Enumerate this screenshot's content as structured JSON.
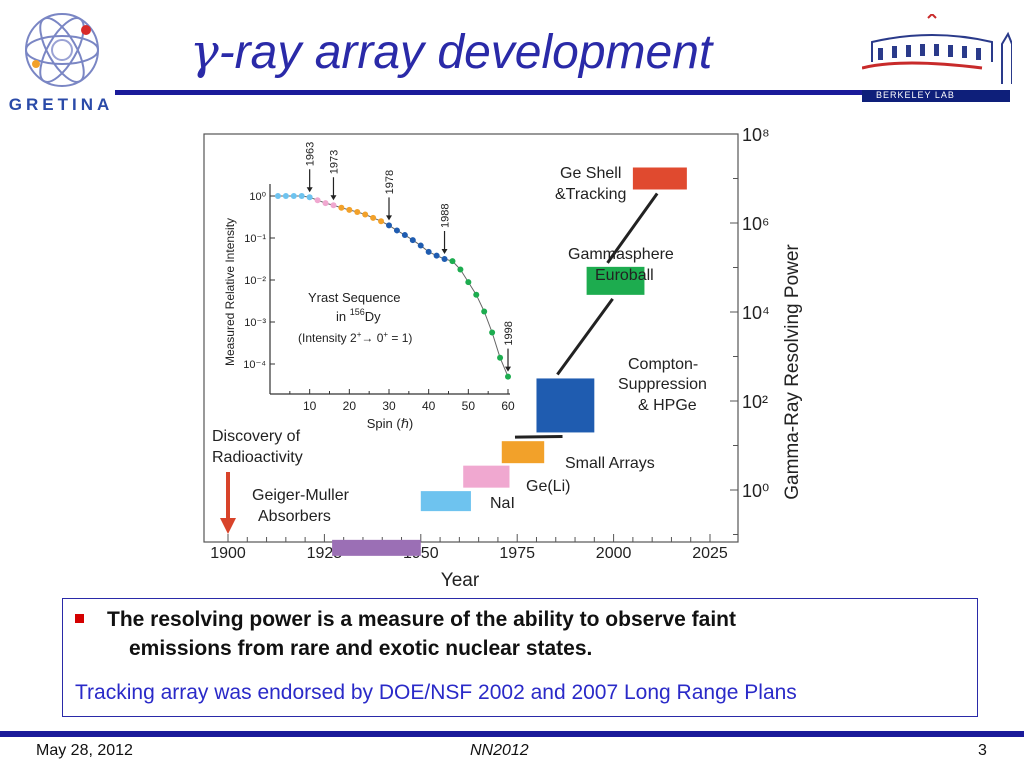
{
  "slide": {
    "title_gamma": "γ",
    "title_rest": "-ray array development"
  },
  "logos": {
    "gretina_text": "GRETINA",
    "berkeley_text": "BERKELEY LAB"
  },
  "chart_data": [
    {
      "type": "bar",
      "xlabel": "Year",
      "ylabel": "Gamma-Ray Resolving Power",
      "x_ticks": [
        "1900",
        "1925",
        "1950",
        "1975",
        "2000",
        "2025"
      ],
      "y_ticks": [
        "10⁰",
        "10²",
        "10⁴",
        "10⁶",
        "10⁸"
      ],
      "xlim": [
        1895,
        2025
      ],
      "ylim": [
        -1.5,
        8.5
      ],
      "yscale": "log",
      "annotations": {
        "discovery": "Discovery of Radioactivity",
        "discovery_year": 1896
      },
      "series": [
        {
          "name": "Geiger-Muller Absorbers",
          "start": 1927,
          "end": 1950,
          "value": -1.3,
          "color": "#9b6fb5"
        },
        {
          "name": "NaI",
          "start": 1950,
          "end": 1963,
          "value": -0.25,
          "color": "#6ec3ef"
        },
        {
          "name": "Ge(Li)",
          "start": 1961,
          "end": 1973,
          "value": 0.3,
          "color": "#f0a8d0"
        },
        {
          "name": "Small Arrays",
          "start": 1971,
          "end": 1982,
          "value": 0.85,
          "color": "#f2a12a"
        },
        {
          "name": "Compton-Suppression & HPGe",
          "start": 1980,
          "end": 1995,
          "value": 1.9,
          "color": "#1f5cb0"
        },
        {
          "name": "Gammasphere Euroball",
          "start": 1993,
          "end": 2008,
          "value": 4.7,
          "color": "#1dac4f"
        },
        {
          "name": "Ge Shell &Tracking",
          "start": 2005,
          "end": 2019,
          "value": 7.0,
          "color": "#e04a2f"
        }
      ]
    },
    {
      "type": "scatter",
      "title": "Yrast Sequence in ¹⁵⁶Dy",
      "note": "(Intensity 2⁺→ 0⁺ = 1)",
      "xlabel": "Spin (ℏ)",
      "ylabel": "Measured Relative Intensity",
      "x_ticks": [
        "10",
        "20",
        "30",
        "40",
        "50",
        "60"
      ],
      "y_ticks": [
        "10⁰",
        "10⁻¹",
        "10⁻²",
        "10⁻³",
        "10⁻⁴"
      ],
      "xlim": [
        0,
        60
      ],
      "ylim": [
        -4.5,
        0.3
      ],
      "milestones": [
        "1963",
        "1973",
        "1978",
        "1988",
        "1998"
      ],
      "points": [
        {
          "x": 2,
          "y": 0.0,
          "color": "#6ec3ef"
        },
        {
          "x": 4,
          "y": 0.0,
          "color": "#6ec3ef"
        },
        {
          "x": 6,
          "y": 0.0,
          "color": "#6ec3ef"
        },
        {
          "x": 8,
          "y": 0.0,
          "color": "#6ec3ef"
        },
        {
          "x": 10,
          "y": -0.03,
          "color": "#6ec3ef"
        },
        {
          "x": 12,
          "y": -0.1,
          "color": "#f0a8d0"
        },
        {
          "x": 14,
          "y": -0.17,
          "color": "#f0a8d0"
        },
        {
          "x": 16,
          "y": -0.22,
          "color": "#f0a8d0"
        },
        {
          "x": 18,
          "y": -0.28,
          "color": "#f2a12a"
        },
        {
          "x": 20,
          "y": -0.33,
          "color": "#f2a12a"
        },
        {
          "x": 22,
          "y": -0.38,
          "color": "#f2a12a"
        },
        {
          "x": 24,
          "y": -0.44,
          "color": "#f2a12a"
        },
        {
          "x": 26,
          "y": -0.52,
          "color": "#f2a12a"
        },
        {
          "x": 28,
          "y": -0.6,
          "color": "#f2a12a"
        },
        {
          "x": 30,
          "y": -0.7,
          "color": "#1f5cb0"
        },
        {
          "x": 32,
          "y": -0.82,
          "color": "#1f5cb0"
        },
        {
          "x": 34,
          "y": -0.93,
          "color": "#1f5cb0"
        },
        {
          "x": 36,
          "y": -1.05,
          "color": "#1f5cb0"
        },
        {
          "x": 38,
          "y": -1.18,
          "color": "#1f5cb0"
        },
        {
          "x": 40,
          "y": -1.33,
          "color": "#1f5cb0"
        },
        {
          "x": 42,
          "y": -1.42,
          "color": "#1f5cb0"
        },
        {
          "x": 44,
          "y": -1.5,
          "color": "#1f5cb0"
        },
        {
          "x": 46,
          "y": -1.55,
          "color": "#1dac4f"
        },
        {
          "x": 48,
          "y": -1.75,
          "color": "#1dac4f"
        },
        {
          "x": 50,
          "y": -2.05,
          "color": "#1dac4f"
        },
        {
          "x": 52,
          "y": -2.35,
          "color": "#1dac4f"
        },
        {
          "x": 54,
          "y": -2.75,
          "color": "#1dac4f"
        },
        {
          "x": 56,
          "y": -3.25,
          "color": "#1dac4f"
        },
        {
          "x": 58,
          "y": -3.85,
          "color": "#1dac4f"
        },
        {
          "x": 60,
          "y": -4.3,
          "color": "#1dac4f"
        }
      ]
    }
  ],
  "note": {
    "line1": "The resolving power is a measure of the ability to observe faint",
    "line2": "emissions from rare and exotic nuclear states.",
    "sub": "Tracking array was endorsed by DOE/NSF 2002 and 2007 Long Range Plans"
  },
  "footer": {
    "date": "May 28, 2012",
    "center": "NN2012",
    "page": "3"
  }
}
